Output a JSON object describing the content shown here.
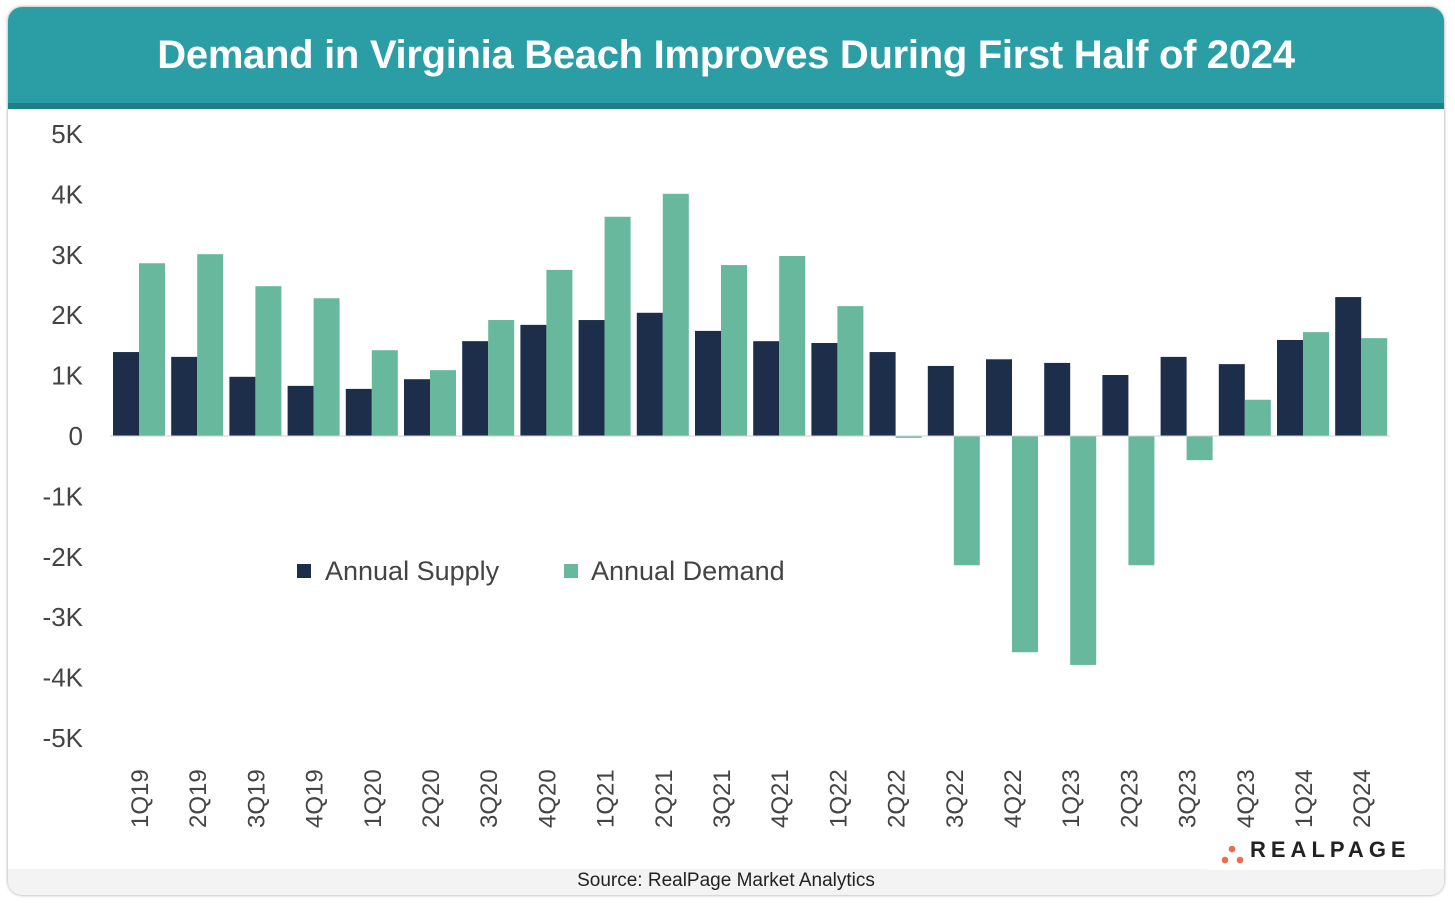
{
  "title": "Demand in Virginia Beach Improves During First Half of 2024",
  "source": "Source: RealPage Market Analytics",
  "logo_text": "REALPAGE",
  "colors": {
    "header": "#2b9ea5",
    "supply": "#1c2e4a",
    "demand": "#67b89c",
    "logo_dots": "#ee6c4d"
  },
  "chart_data": {
    "type": "bar",
    "title": "",
    "xlabel": "",
    "ylabel": "",
    "ylim": [
      -5000,
      5000
    ],
    "yticks": [
      5000,
      4000,
      3000,
      2000,
      1000,
      0,
      -1000,
      -2000,
      -3000,
      -4000,
      -5000
    ],
    "ytick_labels": [
      "5K",
      "4K",
      "3K",
      "2K",
      "1K",
      "0",
      "-1K",
      "-2K",
      "-3K",
      "-4K",
      "-5K"
    ],
    "grid": false,
    "legend": "center-left",
    "categories": [
      "1Q19",
      "2Q19",
      "3Q19",
      "4Q19",
      "1Q20",
      "2Q20",
      "3Q20",
      "4Q20",
      "1Q21",
      "2Q21",
      "3Q21",
      "4Q21",
      "1Q22",
      "2Q22",
      "3Q22",
      "4Q22",
      "1Q23",
      "2Q23",
      "3Q23",
      "4Q23",
      "1Q24",
      "2Q24"
    ],
    "series": [
      {
        "name": "Annual Supply",
        "values": [
          1390,
          1310,
          980,
          830,
          780,
          940,
          1570,
          1840,
          1920,
          2040,
          1740,
          1570,
          1540,
          1390,
          1160,
          1270,
          1210,
          1010,
          1310,
          1190,
          1590,
          2300
        ]
      },
      {
        "name": "Annual Demand",
        "values": [
          2860,
          3010,
          2480,
          2280,
          1420,
          1090,
          1920,
          2750,
          3630,
          4010,
          2830,
          2980,
          2150,
          -30,
          -2140,
          -3580,
          -3790,
          -2140,
          -400,
          600,
          1720,
          1620
        ]
      }
    ]
  }
}
